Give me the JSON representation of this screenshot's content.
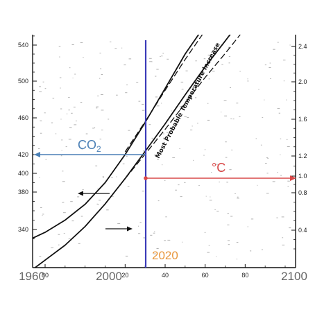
{
  "chart_data": {
    "type": "line",
    "left_axis": {
      "ticks": [
        "540",
        "500",
        "460",
        "420",
        "400",
        "380",
        "340"
      ],
      "values": [
        540,
        500,
        460,
        420,
        400,
        380,
        340
      ],
      "range": [
        300,
        550
      ]
    },
    "right_axis": {
      "ticks": [
        "2.4",
        "2.0",
        "1.6",
        "1.2",
        "1.0",
        "0.8",
        "0.4"
      ],
      "values": [
        2.4,
        2.0,
        1.6,
        1.2,
        1.0,
        0.8,
        0.4
      ],
      "range": [
        0,
        2.5
      ]
    },
    "x_axis": {
      "range": [
        1960,
        2100
      ],
      "small_ticks": [
        "80",
        "20",
        "40",
        "60",
        "80"
      ],
      "small_tick_years": [
        1980,
        2020,
        2040,
        2060,
        2080
      ]
    },
    "decade_labels": [
      {
        "text": "1960",
        "year": 1960
      },
      {
        "text": "2000",
        "year": 2000
      },
      {
        "text": "2100",
        "year": 2100
      }
    ],
    "series": [
      {
        "role": "co2",
        "x": [
          1960,
          1970,
          1980,
          1990,
          2000,
          2010,
          2020,
          2030,
          2040,
          2050,
          2060
        ],
        "y": [
          319,
          327,
          337,
          350,
          367,
          390,
          420,
          455,
          492,
          530,
          562
        ]
      },
      {
        "role": "temperature",
        "x": [
          1975,
          1980,
          1990,
          2000,
          2010,
          2020,
          2030,
          2040,
          2050,
          2060,
          2070,
          2080
        ],
        "y": [
          0.0,
          0.08,
          0.24,
          0.44,
          0.68,
          0.97,
          1.25,
          1.55,
          1.86,
          2.17,
          2.46,
          2.75
        ]
      },
      {
        "role": "co2-dashed",
        "x": [
          2020,
          2030,
          2040,
          2050,
          2060
        ],
        "y": [
          423,
          456,
          490,
          524,
          556
        ]
      },
      {
        "role": "temperature-dashed",
        "x": [
          2020,
          2030,
          2040,
          2050,
          2060,
          2070,
          2080
        ],
        "y": [
          0.97,
          1.22,
          1.49,
          1.77,
          2.05,
          2.32,
          2.6
        ]
      }
    ],
    "marker_line": {
      "year": 2020,
      "label": "2020",
      "color": "#3a3ab8"
    },
    "co2_marker": {
      "value": 420,
      "label": "CO",
      "subscript": "2",
      "color": "#4a7fb5"
    },
    "temp_marker": {
      "value": 1.0,
      "label": "°C",
      "color": "#d94848"
    },
    "curve_label": "Most Probable Temperature Increase",
    "grid": false
  }
}
